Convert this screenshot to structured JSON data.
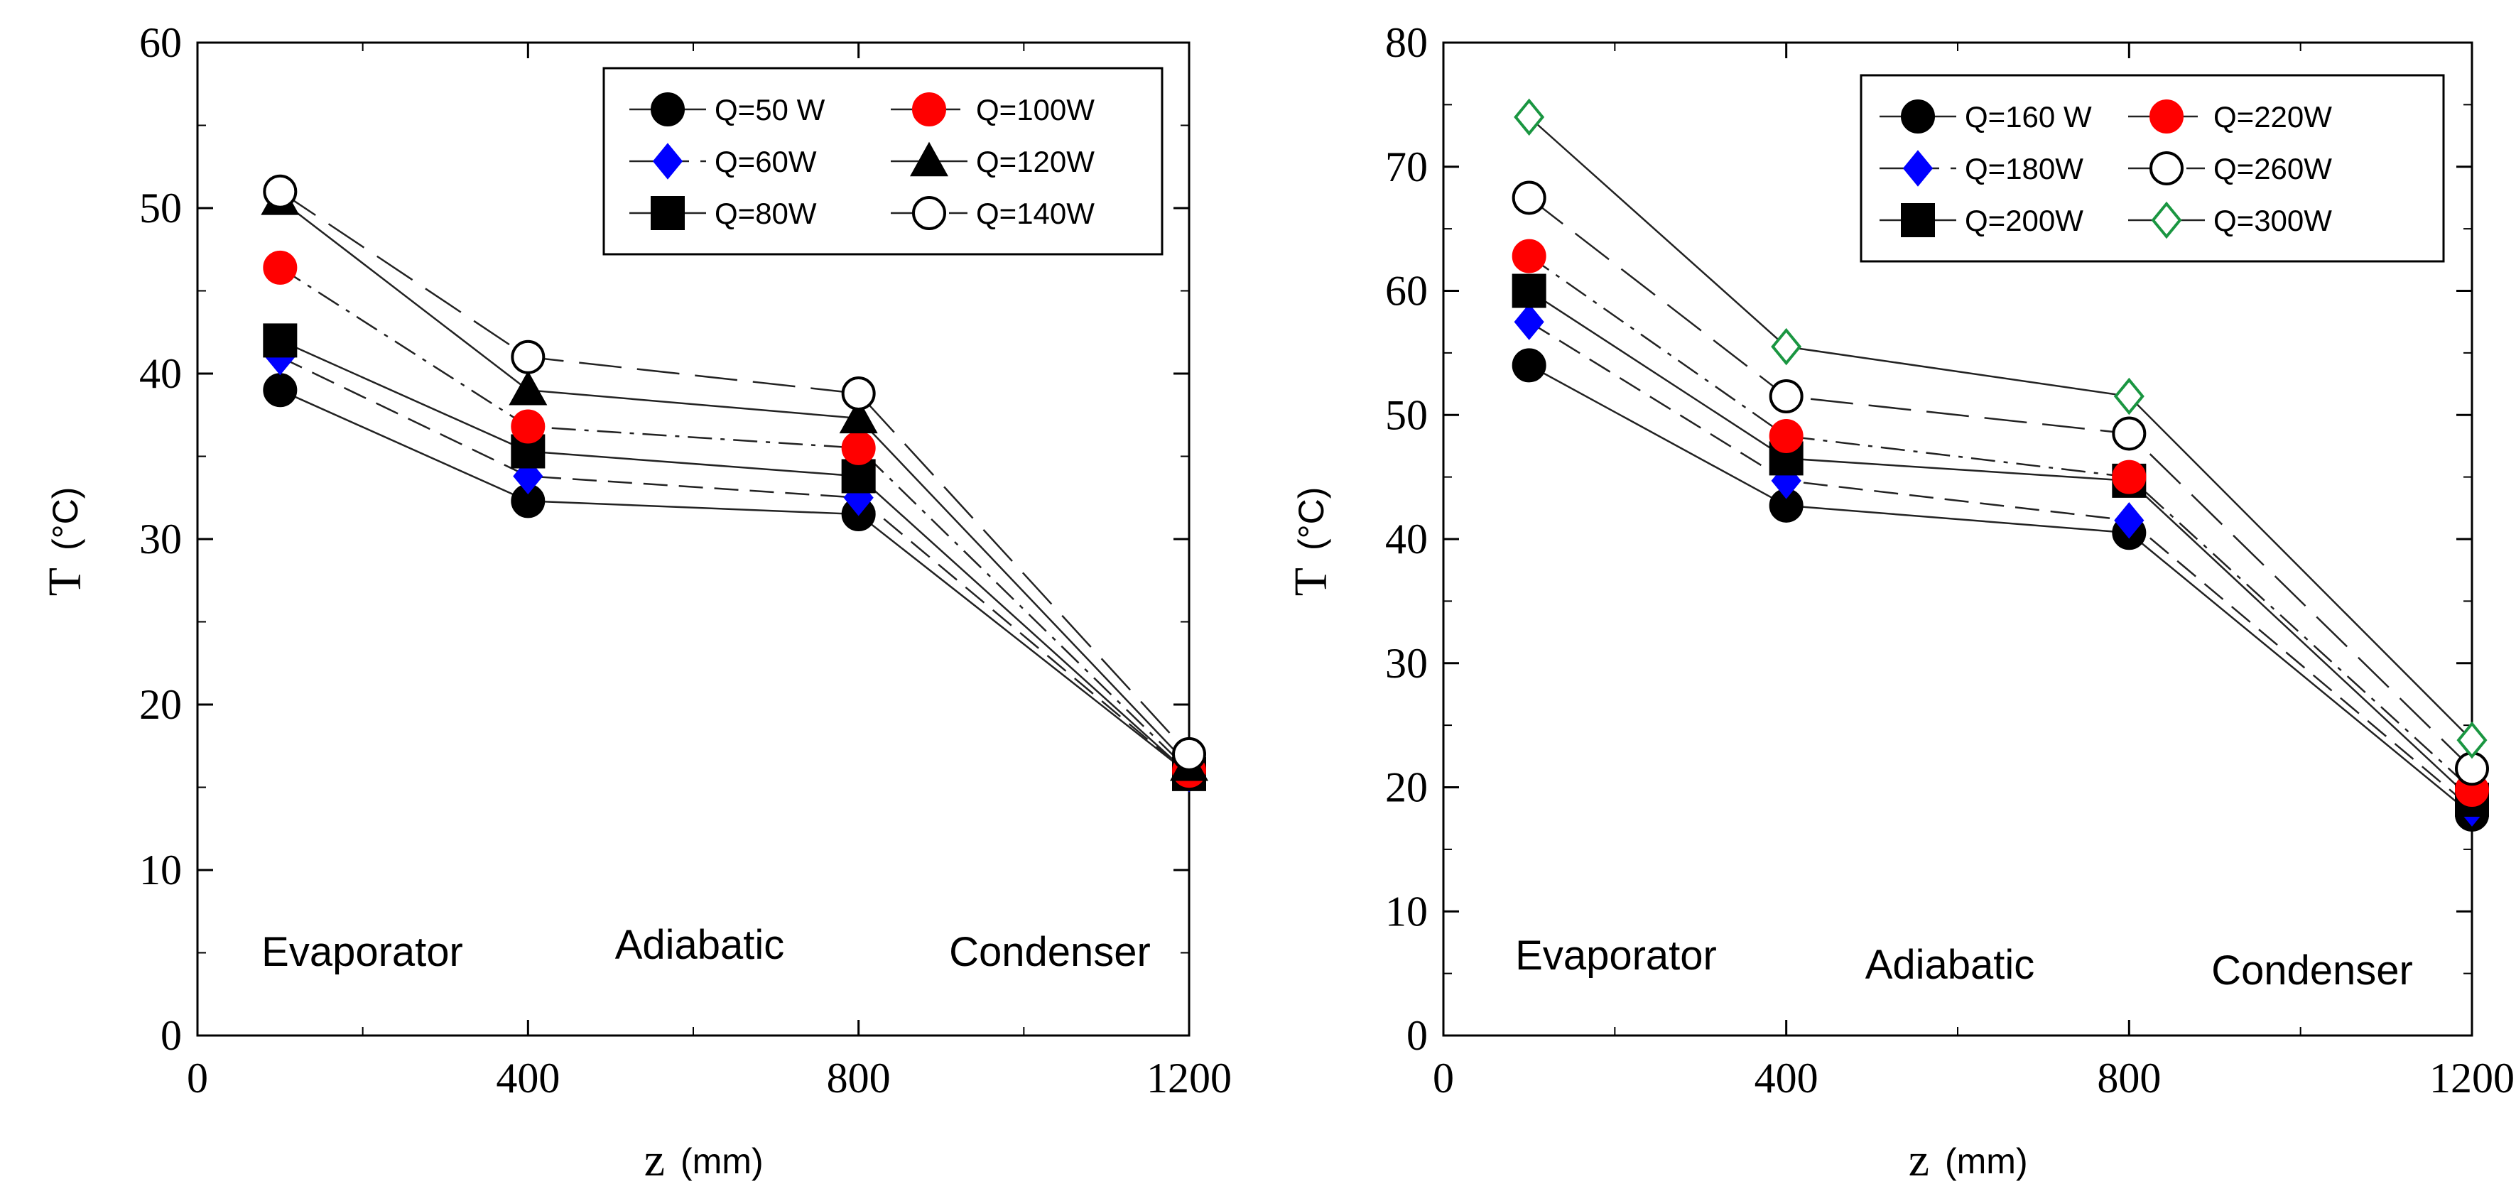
{
  "chart_data": [
    {
      "type": "line",
      "title": "",
      "xlabel": "z",
      "xlabel_unit": "(mm)",
      "ylabel": "T",
      "ylabel_unit": "(°C)",
      "xlim": [
        0,
        1200
      ],
      "ylim": [
        0,
        60
      ],
      "xticks": [
        0,
        400,
        800,
        1200
      ],
      "yticks": [
        0,
        10,
        20,
        30,
        40,
        50,
        60
      ],
      "x": [
        100,
        400,
        800,
        1200
      ],
      "annotations": [
        "Evaporator",
        "Adiabatic",
        "Condenser"
      ],
      "legend_position": "top-right",
      "series": [
        {
          "name": "Q=50 W",
          "values": [
            39.0,
            32.3,
            31.5,
            15.8
          ],
          "marker": "circle",
          "color": "#000000",
          "fill": true,
          "line": "solid"
        },
        {
          "name": "Q=60W",
          "values": [
            41.0,
            33.8,
            32.5,
            15.8
          ],
          "marker": "diamond",
          "color": "#0000ff",
          "fill": true,
          "line": "dash"
        },
        {
          "name": "Q=80W",
          "values": [
            42.0,
            35.3,
            33.8,
            15.8
          ],
          "marker": "square",
          "color": "#000000",
          "fill": true,
          "line": "solid"
        },
        {
          "name": "Q=100W",
          "values": [
            46.4,
            36.8,
            35.5,
            16.0
          ],
          "marker": "circle",
          "color": "#ff0000",
          "fill": true,
          "line": "dashdot"
        },
        {
          "name": "Q=120W",
          "values": [
            50.5,
            39.0,
            37.3,
            16.3
          ],
          "marker": "triangle",
          "color": "#000000",
          "fill": true,
          "line": "solid"
        },
        {
          "name": "Q=140W",
          "values": [
            51.0,
            41.0,
            38.8,
            17.0
          ],
          "marker": "circle",
          "color": "#000000",
          "fill": false,
          "line": "longdash"
        }
      ]
    },
    {
      "type": "line",
      "title": "",
      "xlabel": "z",
      "xlabel_unit": "(mm)",
      "ylabel": "T",
      "ylabel_unit": "(°C)",
      "xlim": [
        0,
        1200
      ],
      "ylim": [
        0,
        80
      ],
      "xticks": [
        0,
        400,
        800,
        1200
      ],
      "yticks": [
        0,
        10,
        20,
        30,
        40,
        50,
        60,
        70,
        80
      ],
      "x": [
        100,
        400,
        800,
        1200
      ],
      "annotations": [
        "Evaporator",
        "Adiabatic",
        "Condenser"
      ],
      "legend_position": "top-right",
      "series": [
        {
          "name": "Q=160 W",
          "values": [
            54.0,
            42.7,
            40.5,
            17.8
          ],
          "marker": "circle",
          "color": "#000000",
          "fill": true,
          "line": "solid"
        },
        {
          "name": "Q=180W",
          "values": [
            57.5,
            44.7,
            41.5,
            18.3
          ],
          "marker": "diamond",
          "color": "#0000ff",
          "fill": true,
          "line": "dash"
        },
        {
          "name": "Q=200W",
          "values": [
            60.0,
            46.5,
            44.7,
            19.0
          ],
          "marker": "square",
          "color": "#000000",
          "fill": true,
          "line": "solid"
        },
        {
          "name": "Q=220W",
          "values": [
            62.8,
            48.3,
            45.0,
            19.8
          ],
          "marker": "circle",
          "color": "#ff0000",
          "fill": true,
          "line": "dashdot"
        },
        {
          "name": "Q=260W",
          "values": [
            67.5,
            51.5,
            48.5,
            21.5
          ],
          "marker": "circle",
          "color": "#000000",
          "fill": false,
          "line": "longdash"
        },
        {
          "name": "Q=300W",
          "values": [
            74.0,
            55.5,
            51.5,
            23.8
          ],
          "marker": "diamond",
          "color": "#1a9641",
          "fill": false,
          "line": "solid"
        }
      ]
    }
  ]
}
